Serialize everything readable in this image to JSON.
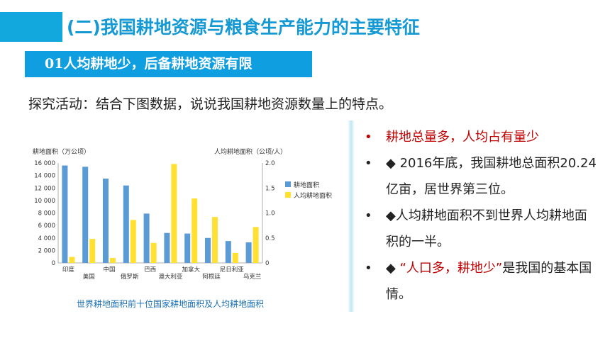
{
  "header": {
    "title": "(二)我国耕地资源与粮食生产能力的主要特征"
  },
  "section": {
    "number": "01",
    "label": "人均耕地少，后备耕地资源有限"
  },
  "instruction": "探究活动：结合下图数据，说说我国耕地资源数量上的特点。",
  "caption": "世界耕地面积前十位国家耕地面积及人均耕地面积",
  "bullets": {
    "item1": {
      "marker": "•",
      "text": "耕地总量多，人均占有量少"
    },
    "item2": {
      "marker": "•",
      "text": "◆ 2016年底，我国耕地总面积20.24亿亩，居世界第三位。"
    },
    "item3": {
      "marker": "•",
      "text": "◆人均耕地面积不到世界人均耕地面积的一半。"
    },
    "item4": {
      "marker": "•",
      "prefix": "◆ ",
      "highlight": "“人口多，耕地少”",
      "suffix": "是我国的基本国情。"
    }
  },
  "colors": {
    "accent": "#12a7dd",
    "title": "#1499d4",
    "bar_area": "#5b9bd5",
    "bar_per_capita": "#ffe033",
    "emphasis": "#c00000"
  },
  "chart_data": {
    "type": "bar",
    "ylabel_left": "耕地面积（万公顷）",
    "ylabel_right": "人均耕地面积（公顷/人）",
    "categories": [
      "印度",
      "美国",
      "中国",
      "俄罗斯",
      "巴西",
      "澳大利亚",
      "加拿大",
      "阿根廷",
      "尼日利亚",
      "乌克兰"
    ],
    "left_ticks": [
      "0",
      "2 000",
      "4 000",
      "6 000",
      "8 000",
      "10 000",
      "12 000",
      "14 000",
      "16 000"
    ],
    "right_ticks": [
      "0",
      "0.5",
      "1.0",
      "1.5",
      "2.0"
    ],
    "ylim_left": [
      0,
      16000
    ],
    "ylim_right": [
      0,
      2.0
    ],
    "series": [
      {
        "name": "耕地面积",
        "axis": "left",
        "color": "#5b9bd5",
        "values": [
          15600,
          15400,
          13500,
          12400,
          7900,
          4800,
          4700,
          4000,
          3500,
          3300
        ]
      },
      {
        "name": "人均耕地面积",
        "axis": "right",
        "color": "#ffe033",
        "values": [
          0.12,
          0.48,
          0.1,
          0.86,
          0.4,
          1.98,
          1.29,
          0.92,
          0.2,
          0.72
        ]
      }
    ],
    "legend_position": "right"
  }
}
